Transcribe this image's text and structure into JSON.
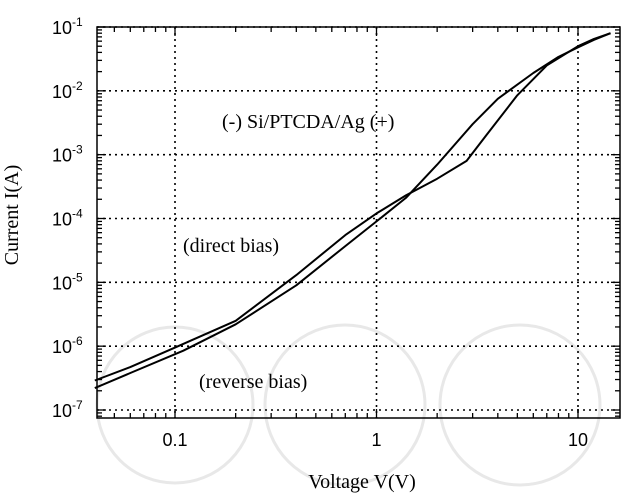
{
  "chart_data": {
    "type": "line",
    "xscale": "log",
    "yscale": "log",
    "xlim": [
      0.04,
      18
    ],
    "ylim": [
      7e-08,
      0.1
    ],
    "grid": true,
    "xlabel": "Voltage V(V)",
    "ylabel": "Current I(A)",
    "x_ticks": [
      {
        "value": 0.1,
        "label": "0.1"
      },
      {
        "value": 1,
        "label": "1"
      },
      {
        "value": 10,
        "label": "10"
      }
    ],
    "y_ticks": [
      {
        "value": 1e-07,
        "base": "10",
        "exp": "-7"
      },
      {
        "value": 1e-06,
        "base": "10",
        "exp": "-6"
      },
      {
        "value": 1e-05,
        "base": "10",
        "exp": "-5"
      },
      {
        "value": 0.0001,
        "base": "10",
        "exp": "-4"
      },
      {
        "value": 0.001,
        "base": "10",
        "exp": "-3"
      },
      {
        "value": 0.01,
        "base": "10",
        "exp": "-2"
      },
      {
        "value": 0.1,
        "base": "10",
        "exp": "-1"
      }
    ],
    "annotations": {
      "device": "(-) Si/PTCDA/Ag (+)",
      "direct": "(direct bias)",
      "reverse": "(reverse bias)"
    },
    "series": [
      {
        "x": [
          0.04,
          0.06,
          0.1,
          0.2,
          0.4,
          0.7,
          1.0,
          1.4,
          2.0,
          2.8,
          3.5,
          5.0,
          7.0,
          10.0,
          12.0,
          14.5
        ],
        "y": [
          2.9e-07,
          4.7e-07,
          9.5e-07,
          2.5e-06,
          1.3e-05,
          5.5e-05,
          0.00012,
          0.00023,
          0.00042,
          0.0008,
          0.002,
          0.0085,
          0.025,
          0.05,
          0.065,
          0.08
        ]
      },
      {
        "x": [
          0.04,
          0.06,
          0.11,
          0.2,
          0.4,
          0.7,
          1.0,
          1.4,
          2.0,
          3.0,
          4.0,
          6.0,
          8.0,
          10.0,
          12.0,
          14.5
        ],
        "y": [
          2.2e-07,
          3.8e-07,
          8.5e-07,
          2.2e-06,
          9e-06,
          3.7e-05,
          9e-05,
          0.00021,
          0.0007,
          0.003,
          0.0075,
          0.019,
          0.034,
          0.048,
          0.063,
          0.08
        ]
      }
    ]
  }
}
